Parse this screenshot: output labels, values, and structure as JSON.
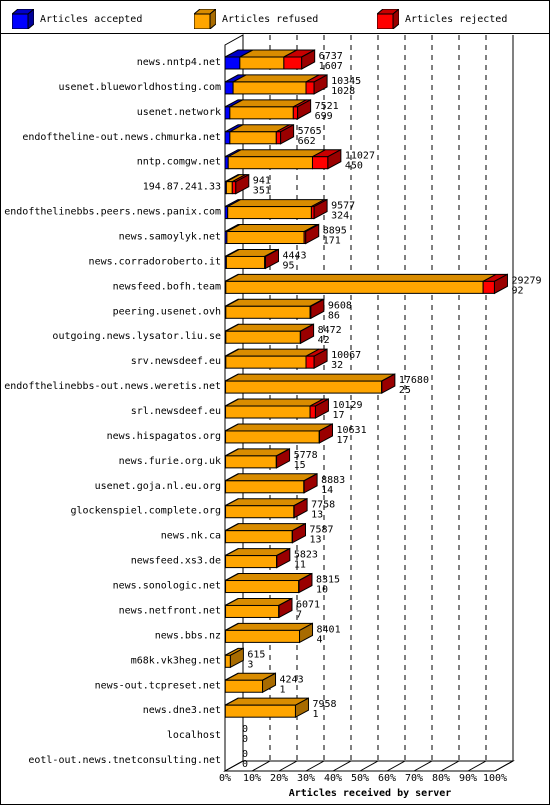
{
  "chart_data": {
    "type": "bar",
    "orientation": "horizontal",
    "stacked": true,
    "xlabel": "Articles received by server",
    "xlim": [
      0,
      100
    ],
    "xunit": "%",
    "x_ticks": [
      "0%",
      "10%",
      "20%",
      "30%",
      "40%",
      "50%",
      "60%",
      "70%",
      "80%",
      "90%",
      "100%"
    ],
    "legend": "top",
    "series": [
      {
        "name": "Articles accepted",
        "color": "#0000ff"
      },
      {
        "name": "Articles refused",
        "color": "#ffa500"
      },
      {
        "name": "Articles rejected",
        "color": "#ff0000"
      }
    ],
    "rows": [
      {
        "server": "news.nntp4.net",
        "accepted": 6737,
        "rejected": 1607,
        "pct": [
          5.5,
          16.3,
          6.6
        ]
      },
      {
        "server": "usenet.blueworldhosting.com",
        "accepted": 10345,
        "rejected": 1028,
        "pct": [
          3.0,
          27.0,
          3.0
        ]
      },
      {
        "server": "usenet.network",
        "accepted": 7521,
        "rejected": 699,
        "pct": [
          1.8,
          23.5,
          1.6
        ]
      },
      {
        "server": "endoftheline-out.news.chmurka.net",
        "accepted": 5765,
        "rejected": 662,
        "pct": [
          1.8,
          17.2,
          1.6
        ]
      },
      {
        "server": "nntp.comgw.net",
        "accepted": 11027,
        "rejected": 450,
        "pct": [
          1.2,
          31.2,
          5.7
        ]
      },
      {
        "server": "194.87.241.33",
        "accepted": 941,
        "rejected": 351,
        "pct": [
          0.5,
          2.2,
          1.3
        ]
      },
      {
        "server": "endofthelinebbs.peers.news.panix.com",
        "accepted": 9577,
        "rejected": 324,
        "pct": [
          1.0,
          31.0,
          1.0
        ]
      },
      {
        "server": "news.samoylyk.net",
        "accepted": 8895,
        "rejected": 171,
        "pct": [
          0.7,
          28.6,
          0.6
        ]
      },
      {
        "server": "news.corradoroberto.it",
        "accepted": 4443,
        "rejected": 95,
        "pct": [
          0.5,
          14.2,
          0.3
        ]
      },
      {
        "server": "newsfeed.bofh.team",
        "accepted": 29279,
        "rejected": 92,
        "pct": [
          0.3,
          95.3,
          4.2
        ]
      },
      {
        "server": "peering.usenet.ovh",
        "accepted": 9608,
        "rejected": 86,
        "pct": [
          0.3,
          31.2,
          0.3
        ]
      },
      {
        "server": "outgoing.news.lysator.liu.se",
        "accepted": 8472,
        "rejected": 42,
        "pct": [
          0.3,
          27.6,
          0.1
        ]
      },
      {
        "server": "srv.newsdeef.eu",
        "accepted": 10067,
        "rejected": 32,
        "pct": [
          0.3,
          29.7,
          3.0
        ]
      },
      {
        "server": "endofthelinebbs-out.news.weretis.net",
        "accepted": 17680,
        "rejected": 25,
        "pct": [
          0.2,
          57.8,
          0.1
        ]
      },
      {
        "server": "srl.newsdeef.eu",
        "accepted": 10129,
        "rejected": 17,
        "pct": [
          0.2,
          31.3,
          2.0
        ]
      },
      {
        "server": "news.hispagatos.org",
        "accepted": 10631,
        "rejected": 17,
        "pct": [
          0.2,
          34.7,
          0.1
        ]
      },
      {
        "server": "news.furie.org.uk",
        "accepted": 5778,
        "rejected": 15,
        "pct": [
          0.2,
          18.8,
          0.1
        ]
      },
      {
        "server": "usenet.goja.nl.eu.org",
        "accepted": 8883,
        "rejected": 14,
        "pct": [
          0.2,
          29.0,
          0.1
        ]
      },
      {
        "server": "glockenspiel.complete.org",
        "accepted": 7758,
        "rejected": 13,
        "pct": [
          0.2,
          25.3,
          0.1
        ]
      },
      {
        "server": "news.nk.ca",
        "accepted": 7587,
        "rejected": 13,
        "pct": [
          0.2,
          24.7,
          0.1
        ]
      },
      {
        "server": "newsfeed.xs3.de",
        "accepted": 5823,
        "rejected": 11,
        "pct": [
          0.2,
          18.9,
          0.1
        ]
      },
      {
        "server": "news.sonologic.net",
        "accepted": 8315,
        "rejected": 10,
        "pct": [
          0.2,
          27.1,
          0.1
        ]
      },
      {
        "server": "news.netfront.net",
        "accepted": 6071,
        "rejected": 7,
        "pct": [
          0.2,
          19.7,
          0.1
        ]
      },
      {
        "server": "news.bbs.nz",
        "accepted": 8401,
        "rejected": 4,
        "pct": [
          0.2,
          27.4,
          0.0
        ]
      },
      {
        "server": "m68k.vk3heg.net",
        "accepted": 615,
        "rejected": 3,
        "pct": [
          0.1,
          1.9,
          0.0
        ]
      },
      {
        "server": "news-out.tcpreset.net",
        "accepted": 4243,
        "rejected": 1,
        "pct": [
          0.1,
          13.8,
          0.0
        ]
      },
      {
        "server": "news.dne3.net",
        "accepted": 7958,
        "rejected": 1,
        "pct": [
          0.1,
          26.0,
          0.0
        ]
      },
      {
        "server": "localhost",
        "accepted": 0,
        "rejected": 0,
        "pct": [
          0,
          0,
          0
        ]
      },
      {
        "server": "eotl-out.news.tnetconsulting.net",
        "accepted": 0,
        "rejected": 0,
        "pct": [
          0,
          0,
          0
        ]
      }
    ]
  }
}
